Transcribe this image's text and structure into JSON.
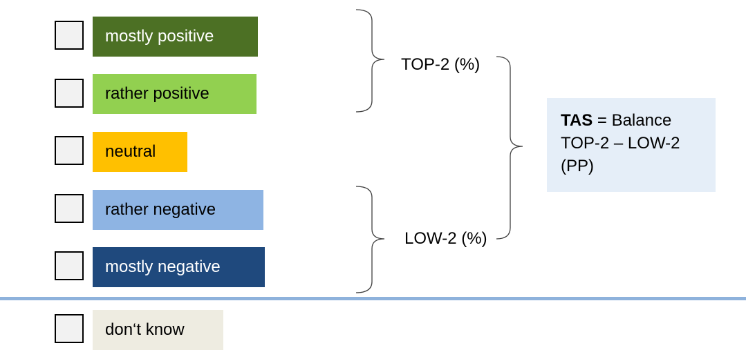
{
  "options": [
    {
      "label": "mostly positive",
      "bg": "#4c7024",
      "fg": "#ffffff"
    },
    {
      "label": "rather positive",
      "bg": "#92d050",
      "fg": "#000000"
    },
    {
      "label": "neutral",
      "bg": "#ffc000",
      "fg": "#000000"
    },
    {
      "label": "rather negative",
      "bg": "#8eb4e3",
      "fg": "#000000"
    },
    {
      "label": "mostly negative",
      "bg": "#1f497d",
      "fg": "#ffffff"
    },
    {
      "label": "don‘t know",
      "bg": "#eeece1",
      "fg": "#000000"
    }
  ],
  "groups": {
    "top2_label": "TOP-2 (%)",
    "low2_label": "LOW-2 (%)"
  },
  "tas": {
    "abbr": "TAS",
    "line1_rest": " = Balance",
    "line2": "TOP-2 – LOW-2",
    "line3": "(PP)"
  },
  "colors": {
    "tas_box_bg": "#e5eef8",
    "separator": "#8eb2dc",
    "checkbox_fill": "#f2f2f2"
  }
}
